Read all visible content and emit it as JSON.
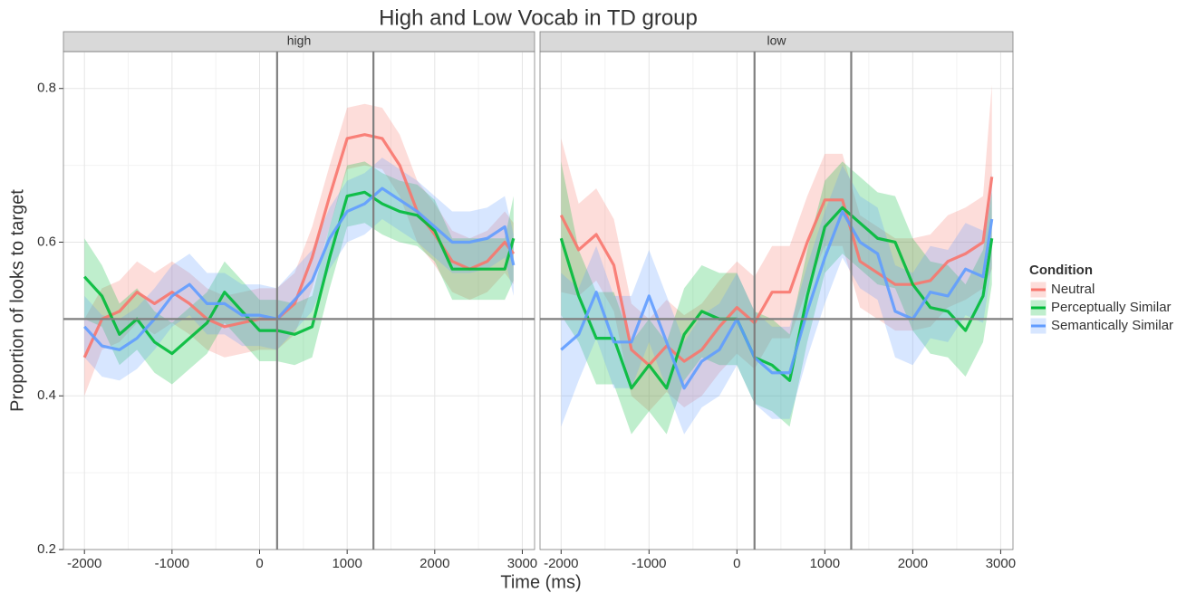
{
  "title": "High and Low Vocab in TD group",
  "x_label": "Time (ms)",
  "y_label": "Proportion of looks to target",
  "legend": {
    "title": "Condition",
    "entries": [
      {
        "name": "Neutral",
        "color": "#F8766D"
      },
      {
        "name": "Perceptually Similar",
        "color": "#00BA38"
      },
      {
        "name": "Semantically Similar",
        "color": "#619CFF"
      }
    ]
  },
  "chart_data": [
    {
      "type": "line",
      "strip": "high",
      "x": [
        -2000,
        -1800,
        -1600,
        -1400,
        -1200,
        -1000,
        -800,
        -600,
        -400,
        -200,
        0,
        200,
        400,
        600,
        800,
        1000,
        1200,
        1400,
        1600,
        1800,
        2000,
        2200,
        2400,
        2600,
        2800,
        2900
      ],
      "xlim": [
        -2240,
        3140
      ],
      "xticks": [
        -2000,
        -1000,
        0,
        1000,
        2000,
        3000
      ],
      "xminor": [
        -1500,
        -500,
        500,
        1500,
        2500
      ],
      "ylim": [
        0.2,
        0.848
      ],
      "yticks": [
        0.2,
        0.4,
        0.6,
        0.8
      ],
      "yminor": [
        0.3,
        0.5,
        0.7
      ],
      "vlines": [
        200,
        1300
      ],
      "hline": 0.5,
      "grid": true,
      "series": [
        {
          "values": [
            0.45,
            0.5,
            0.51,
            0.535,
            0.52,
            0.535,
            0.52,
            0.5,
            0.49,
            0.495,
            0.5,
            0.5,
            0.52,
            0.58,
            0.66,
            0.735,
            0.74,
            0.735,
            0.7,
            0.64,
            0.61,
            0.575,
            0.565,
            0.575,
            0.6,
            0.585
          ],
          "lower": [
            0.4,
            0.46,
            0.47,
            0.495,
            0.48,
            0.495,
            0.48,
            0.46,
            0.45,
            0.455,
            0.46,
            0.46,
            0.48,
            0.54,
            0.62,
            0.695,
            0.7,
            0.695,
            0.66,
            0.6,
            0.57,
            0.535,
            0.525,
            0.535,
            0.56,
            0.545
          ],
          "upper": [
            0.5,
            0.54,
            0.55,
            0.575,
            0.56,
            0.575,
            0.56,
            0.54,
            0.53,
            0.535,
            0.54,
            0.54,
            0.56,
            0.62,
            0.7,
            0.775,
            0.78,
            0.775,
            0.74,
            0.68,
            0.65,
            0.615,
            0.605,
            0.615,
            0.64,
            0.625
          ]
        },
        {
          "values": [
            0.555,
            0.53,
            0.48,
            0.5,
            0.47,
            0.455,
            0.475,
            0.495,
            0.535,
            0.51,
            0.485,
            0.485,
            0.48,
            0.49,
            0.58,
            0.66,
            0.665,
            0.65,
            0.64,
            0.635,
            0.615,
            0.565,
            0.565,
            0.565,
            0.565,
            0.605
          ],
          "lower": [
            0.5,
            0.49,
            0.44,
            0.46,
            0.43,
            0.415,
            0.435,
            0.455,
            0.495,
            0.47,
            0.445,
            0.445,
            0.44,
            0.45,
            0.54,
            0.62,
            0.625,
            0.61,
            0.6,
            0.595,
            0.575,
            0.525,
            0.525,
            0.525,
            0.525,
            0.55
          ],
          "upper": [
            0.605,
            0.57,
            0.52,
            0.54,
            0.51,
            0.495,
            0.515,
            0.535,
            0.575,
            0.55,
            0.525,
            0.525,
            0.52,
            0.53,
            0.62,
            0.7,
            0.705,
            0.69,
            0.68,
            0.675,
            0.655,
            0.605,
            0.605,
            0.605,
            0.605,
            0.66
          ]
        },
        {
          "values": [
            0.49,
            0.465,
            0.46,
            0.475,
            0.5,
            0.53,
            0.545,
            0.52,
            0.52,
            0.505,
            0.505,
            0.5,
            0.525,
            0.55,
            0.605,
            0.64,
            0.65,
            0.67,
            0.655,
            0.64,
            0.62,
            0.6,
            0.6,
            0.605,
            0.62,
            0.57
          ],
          "lower": [
            0.45,
            0.425,
            0.42,
            0.435,
            0.46,
            0.49,
            0.505,
            0.48,
            0.48,
            0.465,
            0.465,
            0.46,
            0.485,
            0.51,
            0.565,
            0.6,
            0.61,
            0.63,
            0.615,
            0.6,
            0.58,
            0.56,
            0.56,
            0.565,
            0.58,
            0.53
          ],
          "upper": [
            0.53,
            0.505,
            0.5,
            0.515,
            0.54,
            0.57,
            0.585,
            0.56,
            0.56,
            0.545,
            0.545,
            0.54,
            0.565,
            0.59,
            0.645,
            0.68,
            0.69,
            0.71,
            0.695,
            0.68,
            0.66,
            0.64,
            0.64,
            0.645,
            0.66,
            0.61
          ]
        }
      ]
    },
    {
      "type": "line",
      "strip": "low",
      "x": [
        -2000,
        -1800,
        -1600,
        -1400,
        -1200,
        -1000,
        -800,
        -600,
        -400,
        -200,
        0,
        200,
        400,
        600,
        800,
        1000,
        1200,
        1400,
        1600,
        1800,
        2000,
        2200,
        2400,
        2600,
        2800,
        2900
      ],
      "xlim": [
        -2240,
        3140
      ],
      "xticks": [
        -2000,
        -1000,
        0,
        1000,
        2000,
        3000
      ],
      "xminor": [
        -1500,
        -500,
        500,
        1500,
        2500
      ],
      "ylim": [
        0.2,
        0.848
      ],
      "yticks": [
        0.2,
        0.4,
        0.6,
        0.8
      ],
      "yminor": [
        0.3,
        0.5,
        0.7
      ],
      "vlines": [
        200,
        1300
      ],
      "hline": 0.5,
      "grid": true,
      "series": [
        {
          "values": [
            0.635,
            0.59,
            0.61,
            0.57,
            0.46,
            0.44,
            0.465,
            0.445,
            0.46,
            0.49,
            0.515,
            0.495,
            0.535,
            0.535,
            0.6,
            0.655,
            0.655,
            0.575,
            0.56,
            0.545,
            0.545,
            0.55,
            0.575,
            0.585,
            0.6,
            0.685
          ],
          "lower": [
            0.535,
            0.53,
            0.55,
            0.51,
            0.4,
            0.38,
            0.405,
            0.385,
            0.4,
            0.43,
            0.455,
            0.435,
            0.475,
            0.475,
            0.54,
            0.595,
            0.595,
            0.515,
            0.5,
            0.485,
            0.485,
            0.49,
            0.515,
            0.525,
            0.54,
            0.565
          ],
          "upper": [
            0.735,
            0.65,
            0.67,
            0.63,
            0.52,
            0.5,
            0.525,
            0.505,
            0.52,
            0.55,
            0.575,
            0.555,
            0.595,
            0.595,
            0.66,
            0.715,
            0.715,
            0.635,
            0.62,
            0.605,
            0.605,
            0.61,
            0.635,
            0.645,
            0.66,
            0.805
          ]
        },
        {
          "values": [
            0.605,
            0.53,
            0.475,
            0.475,
            0.41,
            0.44,
            0.41,
            0.48,
            0.51,
            0.5,
            0.5,
            0.45,
            0.44,
            0.42,
            0.53,
            0.62,
            0.645,
            0.625,
            0.605,
            0.6,
            0.545,
            0.515,
            0.51,
            0.485,
            0.53,
            0.605
          ],
          "lower": [
            0.505,
            0.47,
            0.415,
            0.415,
            0.35,
            0.38,
            0.35,
            0.42,
            0.45,
            0.44,
            0.44,
            0.39,
            0.38,
            0.36,
            0.47,
            0.56,
            0.585,
            0.565,
            0.545,
            0.54,
            0.485,
            0.455,
            0.45,
            0.425,
            0.47,
            0.545
          ],
          "upper": [
            0.705,
            0.59,
            0.535,
            0.535,
            0.47,
            0.5,
            0.47,
            0.54,
            0.57,
            0.56,
            0.56,
            0.51,
            0.5,
            0.48,
            0.59,
            0.68,
            0.705,
            0.685,
            0.665,
            0.66,
            0.605,
            0.575,
            0.57,
            0.545,
            0.59,
            0.665
          ]
        },
        {
          "values": [
            0.46,
            0.48,
            0.535,
            0.47,
            0.47,
            0.53,
            0.47,
            0.41,
            0.445,
            0.46,
            0.5,
            0.45,
            0.43,
            0.43,
            0.51,
            0.58,
            0.64,
            0.6,
            0.585,
            0.51,
            0.5,
            0.535,
            0.53,
            0.565,
            0.555,
            0.63
          ],
          "lower": [
            0.36,
            0.42,
            0.475,
            0.41,
            0.41,
            0.47,
            0.41,
            0.35,
            0.385,
            0.4,
            0.44,
            0.39,
            0.37,
            0.37,
            0.45,
            0.52,
            0.58,
            0.54,
            0.525,
            0.45,
            0.44,
            0.475,
            0.47,
            0.505,
            0.495,
            0.57
          ],
          "upper": [
            0.56,
            0.54,
            0.595,
            0.53,
            0.53,
            0.59,
            0.53,
            0.47,
            0.505,
            0.52,
            0.56,
            0.51,
            0.49,
            0.49,
            0.57,
            0.64,
            0.7,
            0.66,
            0.645,
            0.57,
            0.56,
            0.595,
            0.59,
            0.625,
            0.615,
            0.69
          ]
        }
      ]
    }
  ]
}
